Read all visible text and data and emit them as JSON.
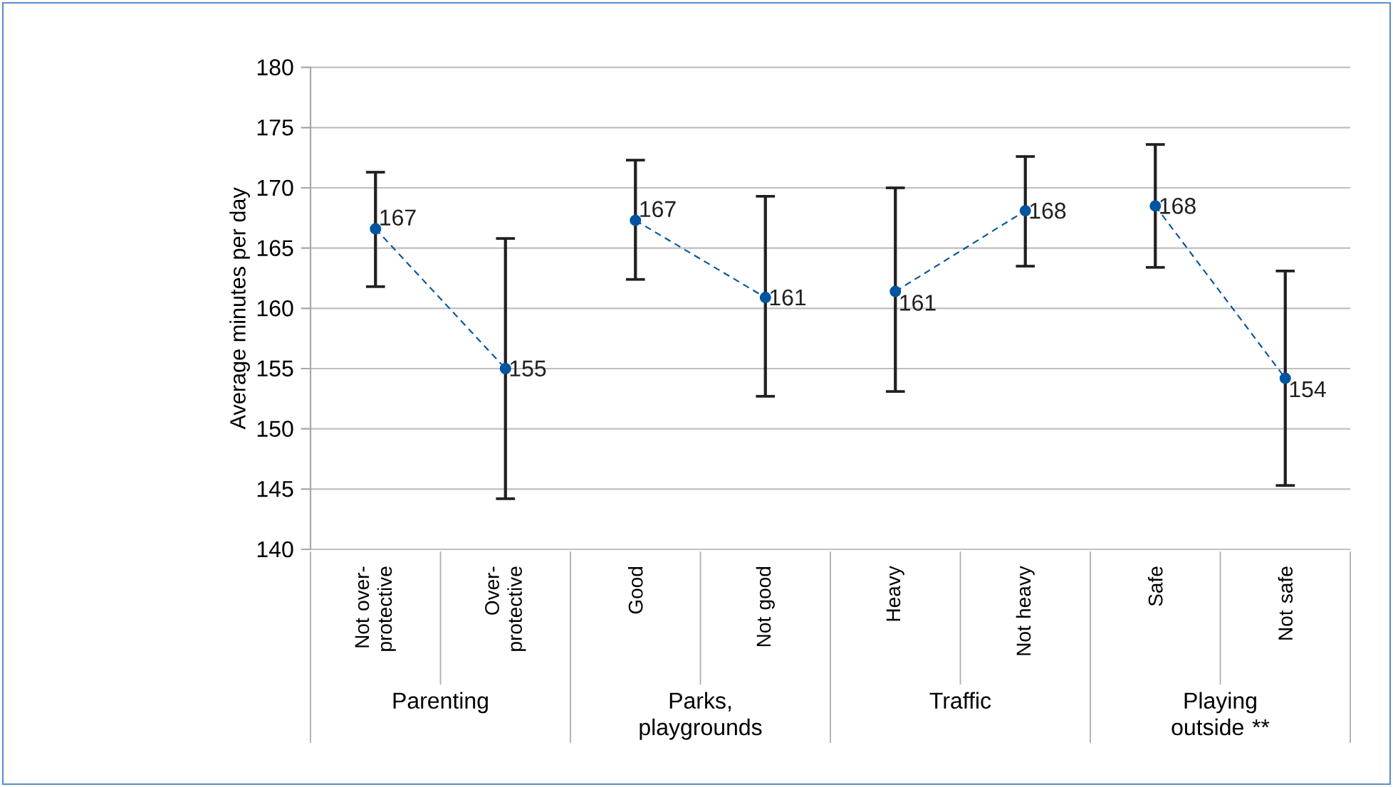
{
  "chart_data": {
    "type": "line",
    "categories": [
      "Not over-protective",
      "Over-protective",
      "Good",
      "Not good",
      "Heavy",
      "Not heavy",
      "Safe",
      "Not safe"
    ],
    "ylabel": "Average minutes per day",
    "ylim": [
      140,
      180
    ],
    "yticks": [
      140,
      145,
      150,
      155,
      160,
      165,
      170,
      175,
      180
    ],
    "grid": "y",
    "marker": "circle",
    "line_style": "dashed",
    "series": [
      {
        "color": "#0055a0",
        "values": [
          166.6,
          155.0,
          null,
          null,
          null,
          null,
          null,
          null
        ],
        "errors": [
          [
            161.8,
            171.3
          ],
          [
            144.2,
            165.8
          ],
          null,
          null,
          null,
          null,
          null,
          null
        ],
        "value_labels": [
          "167",
          "155",
          null,
          null,
          null,
          null,
          null,
          null
        ]
      },
      {
        "color": "#0055a0",
        "values": [
          null,
          null,
          167.3,
          160.9,
          null,
          null,
          null,
          null
        ],
        "errors": [
          null,
          null,
          [
            162.4,
            172.3
          ],
          [
            152.7,
            169.3
          ],
          null,
          null,
          null,
          null
        ],
        "value_labels": [
          null,
          null,
          "167",
          "161",
          null,
          null,
          null,
          null
        ]
      },
      {
        "color": "#0055a0",
        "values": [
          null,
          null,
          null,
          null,
          161.4,
          168.1,
          null,
          null
        ],
        "errors": [
          null,
          null,
          null,
          null,
          [
            153.1,
            170.0
          ],
          [
            163.5,
            172.6
          ],
          null,
          null
        ],
        "value_labels": [
          null,
          null,
          null,
          null,
          "161",
          "168",
          null,
          null
        ]
      },
      {
        "color": "#0055a0",
        "values": [
          null,
          null,
          null,
          null,
          null,
          null,
          168.5,
          154.2
        ],
        "errors": [
          null,
          null,
          null,
          null,
          null,
          null,
          [
            163.4,
            173.6
          ],
          [
            145.3,
            163.1
          ]
        ],
        "value_labels": [
          null,
          null,
          null,
          null,
          null,
          null,
          "168",
          "154"
        ]
      }
    ],
    "annotations": [
      "Parenting",
      "Parks, playgrounds",
      "Traffic",
      "Playing outside **"
    ]
  }
}
